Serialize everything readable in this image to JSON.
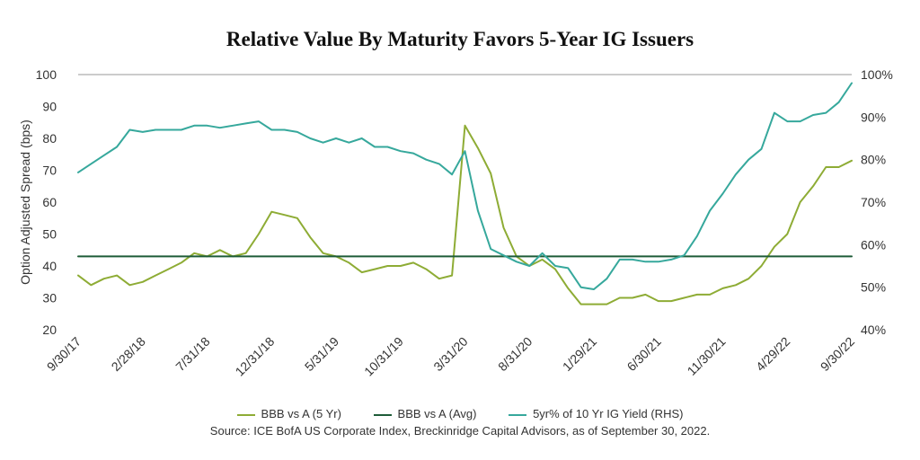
{
  "chart_data": {
    "type": "line",
    "title": "Relative Value By Maturity Favors 5-Year IG Issuers",
    "ylabel": "Option Adjusted Spread (bps)",
    "y2label": "",
    "ylim": [
      20,
      100
    ],
    "y2lim": [
      40,
      100
    ],
    "yticks": [
      "20",
      "30",
      "40",
      "50",
      "60",
      "70",
      "80",
      "90",
      "100"
    ],
    "y2ticks": [
      "40%",
      "50%",
      "60%",
      "70%",
      "80%",
      "90%",
      "100%"
    ],
    "x_tick_labels": [
      "9/30/17",
      "2/28/18",
      "7/31/18",
      "12/31/18",
      "5/31/19",
      "10/31/19",
      "3/31/20",
      "8/31/20",
      "1/29/21",
      "6/30/21",
      "11/30/21",
      "4/29/22",
      "9/30/22"
    ],
    "x": [
      "9/30/17",
      "10/31/17",
      "11/30/17",
      "12/31/17",
      "1/31/18",
      "2/28/18",
      "3/31/18",
      "4/30/18",
      "5/31/18",
      "6/30/18",
      "7/31/18",
      "8/31/18",
      "9/30/18",
      "10/31/18",
      "11/30/18",
      "12/31/18",
      "1/31/19",
      "2/28/19",
      "3/31/19",
      "4/30/19",
      "5/31/19",
      "6/30/19",
      "7/31/19",
      "8/31/19",
      "9/30/19",
      "10/31/19",
      "11/30/19",
      "12/31/19",
      "1/31/20",
      "2/29/20",
      "3/31/20",
      "4/30/20",
      "5/31/20",
      "6/30/20",
      "7/31/20",
      "8/31/20",
      "9/30/20",
      "10/31/20",
      "11/30/20",
      "12/31/20",
      "1/29/21",
      "2/28/21",
      "3/31/21",
      "4/30/21",
      "5/31/21",
      "6/30/21",
      "7/31/21",
      "8/31/21",
      "9/30/21",
      "10/31/21",
      "11/30/21",
      "12/31/21",
      "1/31/22",
      "2/28/22",
      "3/31/22",
      "4/29/22",
      "5/31/22",
      "6/30/22",
      "7/31/22",
      "8/31/22",
      "9/30/22"
    ],
    "grid": false,
    "legend_position": "bottom",
    "series": [
      {
        "name": "BBB vs A (5 Yr)",
        "axis": "left",
        "color": "#8eac35",
        "values": [
          37,
          34,
          36,
          37,
          34,
          35,
          37,
          39,
          41,
          44,
          43,
          45,
          43,
          44,
          50,
          57,
          56,
          55,
          49,
          44,
          43,
          41,
          38,
          39,
          40,
          40,
          41,
          39,
          36,
          37,
          84,
          77,
          69,
          52,
          43,
          40,
          42,
          39,
          33,
          28,
          28,
          28,
          30,
          30,
          31,
          29,
          29,
          30,
          31,
          31,
          33,
          34,
          36,
          40,
          46,
          50,
          60,
          65,
          71,
          71,
          73
        ]
      },
      {
        "name": "BBB vs A (Avg)",
        "axis": "left",
        "color": "#1e5c38",
        "values": [
          43,
          43,
          43,
          43,
          43,
          43,
          43,
          43,
          43,
          43,
          43,
          43,
          43,
          43,
          43,
          43,
          43,
          43,
          43,
          43,
          43,
          43,
          43,
          43,
          43,
          43,
          43,
          43,
          43,
          43,
          43,
          43,
          43,
          43,
          43,
          43,
          43,
          43,
          43,
          43,
          43,
          43,
          43,
          43,
          43,
          43,
          43,
          43,
          43,
          43,
          43,
          43,
          43,
          43,
          43,
          43,
          43,
          43,
          43,
          43,
          43
        ]
      },
      {
        "name": "5yr% of 10 Yr IG Yield (RHS)",
        "axis": "right",
        "color": "#36a89c",
        "values": [
          77,
          79,
          81,
          83,
          87,
          86.5,
          87,
          87,
          87,
          88,
          88,
          87.5,
          88,
          88.5,
          89,
          87,
          87,
          86.5,
          85,
          84,
          85,
          84,
          85,
          83,
          83,
          82,
          81.5,
          80,
          79,
          76.5,
          82,
          68,
          59,
          57.5,
          56,
          55,
          58,
          55,
          54.5,
          50,
          49.5,
          52,
          56.5,
          56.5,
          56,
          56,
          56.5,
          57.5,
          62,
          68,
          72,
          76.5,
          80,
          82.5,
          91,
          89,
          89,
          90.5,
          91,
          93.5,
          98
        ]
      }
    ]
  },
  "legend": {
    "items": [
      {
        "label": "BBB vs A (5 Yr)",
        "color": "#8eac35"
      },
      {
        "label": "BBB vs A (Avg)",
        "color": "#1e5c38"
      },
      {
        "label": "5yr% of 10 Yr IG Yield (RHS)",
        "color": "#36a89c"
      }
    ]
  },
  "source_note": "Source: ICE BofA US Corporate Index, Breckinridge Capital Advisors, as of September 30, 2022."
}
